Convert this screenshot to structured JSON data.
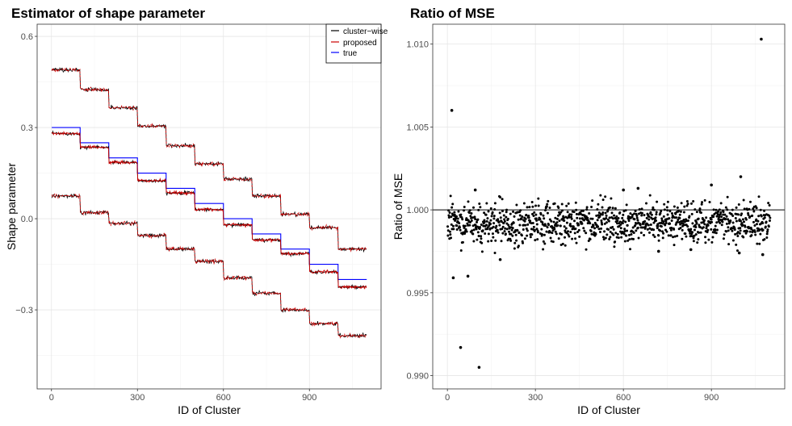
{
  "colors": {
    "cluster_wise": "#000000",
    "proposed": "#cc0000",
    "true": "#0000ff",
    "grid_major": "#e6e6e6",
    "grid_minor": "#f3f3f3"
  },
  "chart_data": [
    {
      "type": "line",
      "title": "Estimator of shape parameter",
      "xlabel": "ID of Cluster",
      "ylabel": "Shape parameter",
      "xlim": [
        -50,
        1150
      ],
      "ylim": [
        -0.56,
        0.64
      ],
      "xticks": [
        0,
        300,
        600,
        900
      ],
      "xtick_labels": [
        "0",
        "300",
        "600",
        "900"
      ],
      "yticks": [
        -0.3,
        0.0,
        0.3,
        0.6
      ],
      "ytick_labels": [
        "−0.3",
        "0.0",
        "0.3",
        "0.6"
      ],
      "legend": {
        "position": "top-right",
        "entries": [
          "cluster−wise",
          "proposed",
          "true"
        ]
      },
      "x_range": [
        1,
        1100
      ],
      "step_width": 100,
      "series": [
        {
          "name": "true",
          "role": "true",
          "levels": [
            0.3,
            0.25,
            0.2,
            0.15,
            0.1,
            0.05,
            0.0,
            -0.05,
            -0.1,
            -0.15,
            -0.2
          ]
        },
        {
          "name": "proposed",
          "role": "proposed",
          "levels": [
            0.28,
            0.235,
            0.185,
            0.125,
            0.085,
            0.03,
            -0.02,
            -0.07,
            -0.115,
            -0.175,
            -0.225
          ]
        },
        {
          "name": "upper band",
          "role": "band",
          "levels": [
            0.49,
            0.425,
            0.365,
            0.305,
            0.24,
            0.18,
            0.13,
            0.075,
            0.015,
            -0.03,
            -0.1
          ]
        },
        {
          "name": "lower band",
          "role": "band",
          "levels": [
            0.075,
            0.02,
            -0.015,
            -0.055,
            -0.1,
            -0.14,
            -0.195,
            -0.245,
            -0.3,
            -0.345,
            -0.385
          ]
        }
      ]
    },
    {
      "type": "scatter",
      "title": "Ratio of MSE",
      "xlabel": "ID of Cluster",
      "ylabel": "Ratio of MSE",
      "xlim": [
        -50,
        1150
      ],
      "ylim": [
        0.9892,
        1.0112
      ],
      "xticks": [
        0,
        300,
        600,
        900
      ],
      "xtick_labels": [
        "0",
        "300",
        "600",
        "900"
      ],
      "yticks": [
        0.99,
        0.995,
        1.0,
        1.005,
        1.01
      ],
      "ytick_labels": [
        "0.990",
        "0.995",
        "1.000",
        "1.005",
        "1.010"
      ],
      "reference_line": 1.0,
      "n_points": 1100,
      "bulk_center": 0.9992,
      "bulk_spread": 0.0006,
      "outliers": [
        {
          "x": 15,
          "y": 1.006
        },
        {
          "x": 20,
          "y": 0.9959
        },
        {
          "x": 70,
          "y": 0.996
        },
        {
          "x": 45,
          "y": 0.9917
        },
        {
          "x": 108,
          "y": 0.9905
        },
        {
          "x": 95,
          "y": 1.0012
        },
        {
          "x": 180,
          "y": 0.997
        },
        {
          "x": 1070,
          "y": 1.0103
        },
        {
          "x": 1000,
          "y": 1.002
        },
        {
          "x": 900,
          "y": 1.0015
        },
        {
          "x": 1075,
          "y": 0.9973
        },
        {
          "x": 995,
          "y": 0.9974
        },
        {
          "x": 720,
          "y": 0.9975
        },
        {
          "x": 830,
          "y": 0.9976
        },
        {
          "x": 650,
          "y": 1.0013
        },
        {
          "x": 600,
          "y": 1.0012
        }
      ]
    }
  ]
}
